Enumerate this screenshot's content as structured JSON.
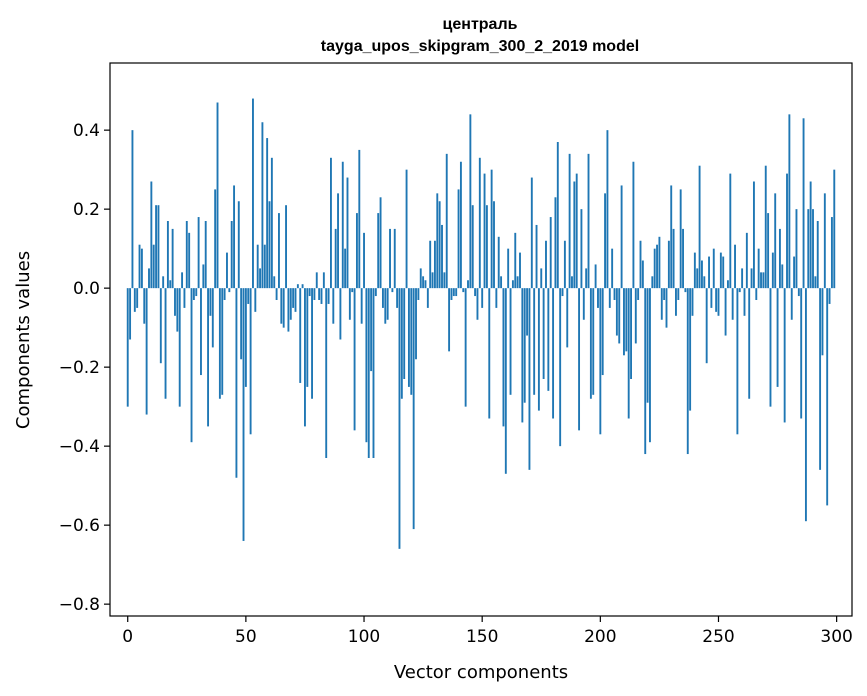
{
  "chart_data": {
    "type": "bar",
    "title_line1": "централь",
    "title_line2": "tayga_upos_skipgram_300_2_2019 model",
    "xlabel": "Vector components",
    "ylabel": "Components values",
    "xlim": [
      -7.5,
      306.5
    ],
    "ylim": [
      -0.83,
      0.57
    ],
    "xticks": [
      0,
      50,
      100,
      150,
      200,
      250,
      300
    ],
    "xtick_labels": [
      "0",
      "50",
      "100",
      "150",
      "200",
      "250",
      "300"
    ],
    "yticks": [
      -0.8,
      -0.6,
      -0.4,
      -0.2,
      0.0,
      0.2,
      0.4
    ],
    "ytick_labels": [
      "−0.8",
      "−0.6",
      "−0.4",
      "−0.2",
      "0.0",
      "0.2",
      "0.4"
    ],
    "bar_color": "#1f77b4",
    "grid": false,
    "x": [
      0,
      1,
      2,
      3,
      4,
      5,
      6,
      7,
      8,
      9,
      10,
      11,
      12,
      13,
      14,
      15,
      16,
      17,
      18,
      19,
      20,
      21,
      22,
      23,
      24,
      25,
      26,
      27,
      28,
      29,
      30,
      31,
      32,
      33,
      34,
      35,
      36,
      37,
      38,
      39,
      40,
      41,
      42,
      43,
      44,
      45,
      46,
      47,
      48,
      49,
      50,
      51,
      52,
      53,
      54,
      55,
      56,
      57,
      58,
      59,
      60,
      61,
      62,
      63,
      64,
      65,
      66,
      67,
      68,
      69,
      70,
      71,
      72,
      73,
      74,
      75,
      76,
      77,
      78,
      79,
      80,
      81,
      82,
      83,
      84,
      85,
      86,
      87,
      88,
      89,
      90,
      91,
      92,
      93,
      94,
      95,
      96,
      97,
      98,
      99,
      100,
      101,
      102,
      103,
      104,
      105,
      106,
      107,
      108,
      109,
      110,
      111,
      112,
      113,
      114,
      115,
      116,
      117,
      118,
      119,
      120,
      121,
      122,
      123,
      124,
      125,
      126,
      127,
      128,
      129,
      130,
      131,
      132,
      133,
      134,
      135,
      136,
      137,
      138,
      139,
      140,
      141,
      142,
      143,
      144,
      145,
      146,
      147,
      148,
      149,
      150,
      151,
      152,
      153,
      154,
      155,
      156,
      157,
      158,
      159,
      160,
      161,
      162,
      163,
      164,
      165,
      166,
      167,
      168,
      169,
      170,
      171,
      172,
      173,
      174,
      175,
      176,
      177,
      178,
      179,
      180,
      181,
      182,
      183,
      184,
      185,
      186,
      187,
      188,
      189,
      190,
      191,
      192,
      193,
      194,
      195,
      196,
      197,
      198,
      199,
      200,
      201,
      202,
      203,
      204,
      205,
      206,
      207,
      208,
      209,
      210,
      211,
      212,
      213,
      214,
      215,
      216,
      217,
      218,
      219,
      220,
      221,
      222,
      223,
      224,
      225,
      226,
      227,
      228,
      229,
      230,
      231,
      232,
      233,
      234,
      235,
      236,
      237,
      238,
      239,
      240,
      241,
      242,
      243,
      244,
      245,
      246,
      247,
      248,
      249,
      250,
      251,
      252,
      253,
      254,
      255,
      256,
      257,
      258,
      259,
      260,
      261,
      262,
      263,
      264,
      265,
      266,
      267,
      268,
      269,
      270,
      271,
      272,
      273,
      274,
      275,
      276,
      277,
      278,
      279,
      280,
      281,
      282,
      283,
      284,
      285,
      286,
      287,
      288,
      289,
      290,
      291,
      292,
      293,
      294,
      295,
      296,
      297,
      298,
      299
    ],
    "values": [
      -0.3,
      -0.13,
      0.4,
      -0.06,
      -0.05,
      0.11,
      0.1,
      -0.09,
      -0.32,
      0.05,
      0.27,
      0.11,
      0.21,
      0.21,
      -0.19,
      0.03,
      -0.28,
      0.17,
      0.02,
      0.15,
      -0.07,
      -0.11,
      -0.3,
      0.04,
      -0.05,
      0.17,
      0.14,
      -0.39,
      -0.03,
      -0.02,
      0.18,
      -0.22,
      0.06,
      0.17,
      -0.35,
      -0.07,
      -0.15,
      0.25,
      0.47,
      -0.28,
      -0.27,
      -0.03,
      0.09,
      -0.01,
      0.17,
      0.26,
      -0.48,
      0.22,
      -0.18,
      -0.64,
      -0.25,
      -0.04,
      -0.37,
      0.48,
      -0.06,
      0.11,
      0.05,
      0.42,
      0.11,
      0.38,
      0.22,
      0.33,
      0.03,
      -0.03,
      0.19,
      -0.09,
      -0.1,
      0.21,
      -0.11,
      -0.08,
      -0.05,
      -0.06,
      0.01,
      -0.24,
      0.01,
      -0.35,
      -0.25,
      -0.02,
      -0.28,
      -0.03,
      0.04,
      -0.03,
      -0.04,
      0.04,
      -0.43,
      -0.04,
      0.33,
      -0.09,
      0.15,
      0.24,
      -0.13,
      0.32,
      0.1,
      0.28,
      -0.08,
      -0.01,
      -0.36,
      0.19,
      0.35,
      -0.09,
      0.14,
      -0.39,
      -0.43,
      -0.21,
      -0.43,
      -0.02,
      0.19,
      0.23,
      -0.05,
      -0.09,
      -0.08,
      0.15,
      -0.01,
      0.15,
      -0.05,
      -0.66,
      -0.28,
      -0.23,
      0.3,
      -0.25,
      -0.27,
      -0.61,
      -0.18,
      -0.03,
      0.05,
      0.03,
      0.02,
      -0.05,
      0.12,
      0.04,
      0.12,
      0.24,
      0.22,
      0.16,
      0.04,
      0.34,
      -0.16,
      -0.03,
      -0.02,
      -0.02,
      0.25,
      0.32,
      -0.01,
      -0.3,
      0.02,
      0.44,
      0.21,
      -0.02,
      -0.08,
      0.33,
      -0.05,
      0.29,
      0.21,
      -0.33,
      0.3,
      0.22,
      -0.05,
      0.13,
      0.03,
      -0.35,
      -0.47,
      0.1,
      -0.27,
      0.02,
      0.14,
      0.03,
      0.09,
      -0.34,
      -0.29,
      -0.12,
      -0.46,
      0.28,
      -0.27,
      0.16,
      -0.31,
      0.05,
      -0.23,
      0.12,
      -0.26,
      0.18,
      -0.33,
      0.23,
      0.37,
      -0.4,
      -0.02,
      0.12,
      -0.15,
      0.34,
      0.03,
      0.27,
      0.29,
      -0.36,
      0.2,
      -0.08,
      0.05,
      0.34,
      -0.28,
      -0.27,
      0.06,
      -0.05,
      -0.37,
      -0.22,
      0.24,
      0.4,
      -0.05,
      0.1,
      -0.03,
      -0.12,
      -0.14,
      0.26,
      -0.17,
      -0.16,
      -0.33,
      -0.23,
      0.32,
      -0.14,
      -0.03,
      0.12,
      0.07,
      -0.42,
      -0.29,
      -0.39,
      0.03,
      0.1,
      0.11,
      0.13,
      -0.08,
      -0.03,
      -0.1,
      0.12,
      0.26,
      0.15,
      -0.07,
      -0.03,
      0.25,
      0.15,
      -0.01,
      -0.42,
      -0.31,
      -0.07,
      0.09,
      0.05,
      0.31,
      0.07,
      0.03,
      -0.19,
      0.08,
      -0.05,
      0.1,
      -0.06,
      -0.07,
      0.09,
      0.08,
      -0.12,
      0.02,
      0.29,
      -0.08,
      0.11,
      -0.37,
      -0.01,
      0.05,
      -0.07,
      0.14,
      -0.28,
      0.05,
      0.27,
      -0.03,
      0.1,
      0.04,
      0.04,
      0.31,
      0.19,
      -0.3,
      0.09,
      0.24,
      -0.25,
      0.15,
      0.06,
      -0.34,
      0.29,
      0.44,
      -0.08,
      0.08,
      0.2,
      -0.02,
      -0.33,
      0.43,
      -0.59,
      0.2,
      0.27,
      0.2,
      0.03,
      0.17,
      -0.46,
      -0.17,
      0.24,
      -0.55,
      -0.04,
      0.18,
      0.3
    ]
  }
}
